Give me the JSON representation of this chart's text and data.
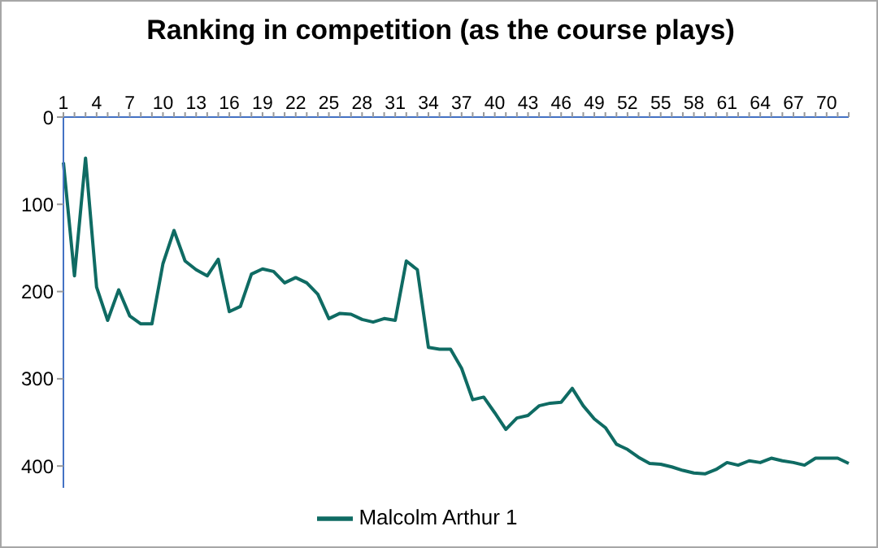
{
  "chart_data": {
    "type": "line",
    "title": "Ranking in competition (as the course plays)",
    "categories": [
      "1",
      null,
      null,
      "4",
      null,
      null,
      "7",
      null,
      null,
      "10",
      null,
      null,
      "13",
      null,
      null,
      "16",
      null,
      null,
      "19",
      null,
      null,
      "22",
      null,
      null,
      "25",
      null,
      null,
      "28",
      null,
      null,
      "31",
      null,
      null,
      "34",
      null,
      null,
      "37",
      null,
      null,
      "40",
      null,
      null,
      "43",
      null,
      null,
      "46",
      null,
      null,
      "49",
      null,
      null,
      "52",
      null,
      null,
      "55",
      null,
      null,
      "58",
      null,
      null,
      "61",
      null,
      null,
      "64",
      null,
      null,
      "67",
      null,
      null,
      "70",
      null,
      null
    ],
    "series": [
      {
        "name": "Malcolm Arthur 1",
        "color": "#0f6b63",
        "values": [
          52,
          182,
          47,
          195,
          233,
          198,
          228,
          237,
          237,
          168,
          130,
          165,
          175,
          182,
          163,
          223,
          217,
          180,
          174,
          177,
          190,
          184,
          190,
          203,
          231,
          225,
          226,
          232,
          235,
          231,
          233,
          165,
          175,
          264,
          266,
          266,
          288,
          324,
          321,
          339,
          358,
          345,
          342,
          331,
          328,
          327,
          311,
          331,
          346,
          356,
          375,
          381,
          390,
          397,
          398,
          401,
          405,
          408,
          409,
          404,
          396,
          399,
          394,
          396,
          391,
          394,
          396,
          399,
          391,
          391,
          391,
          397
        ]
      }
    ],
    "ylim": [
      425,
      0
    ],
    "yticks": [
      0,
      100,
      200,
      300,
      400
    ],
    "grid": false,
    "legend": "bottom",
    "marker": "none",
    "line_style": "solid"
  }
}
